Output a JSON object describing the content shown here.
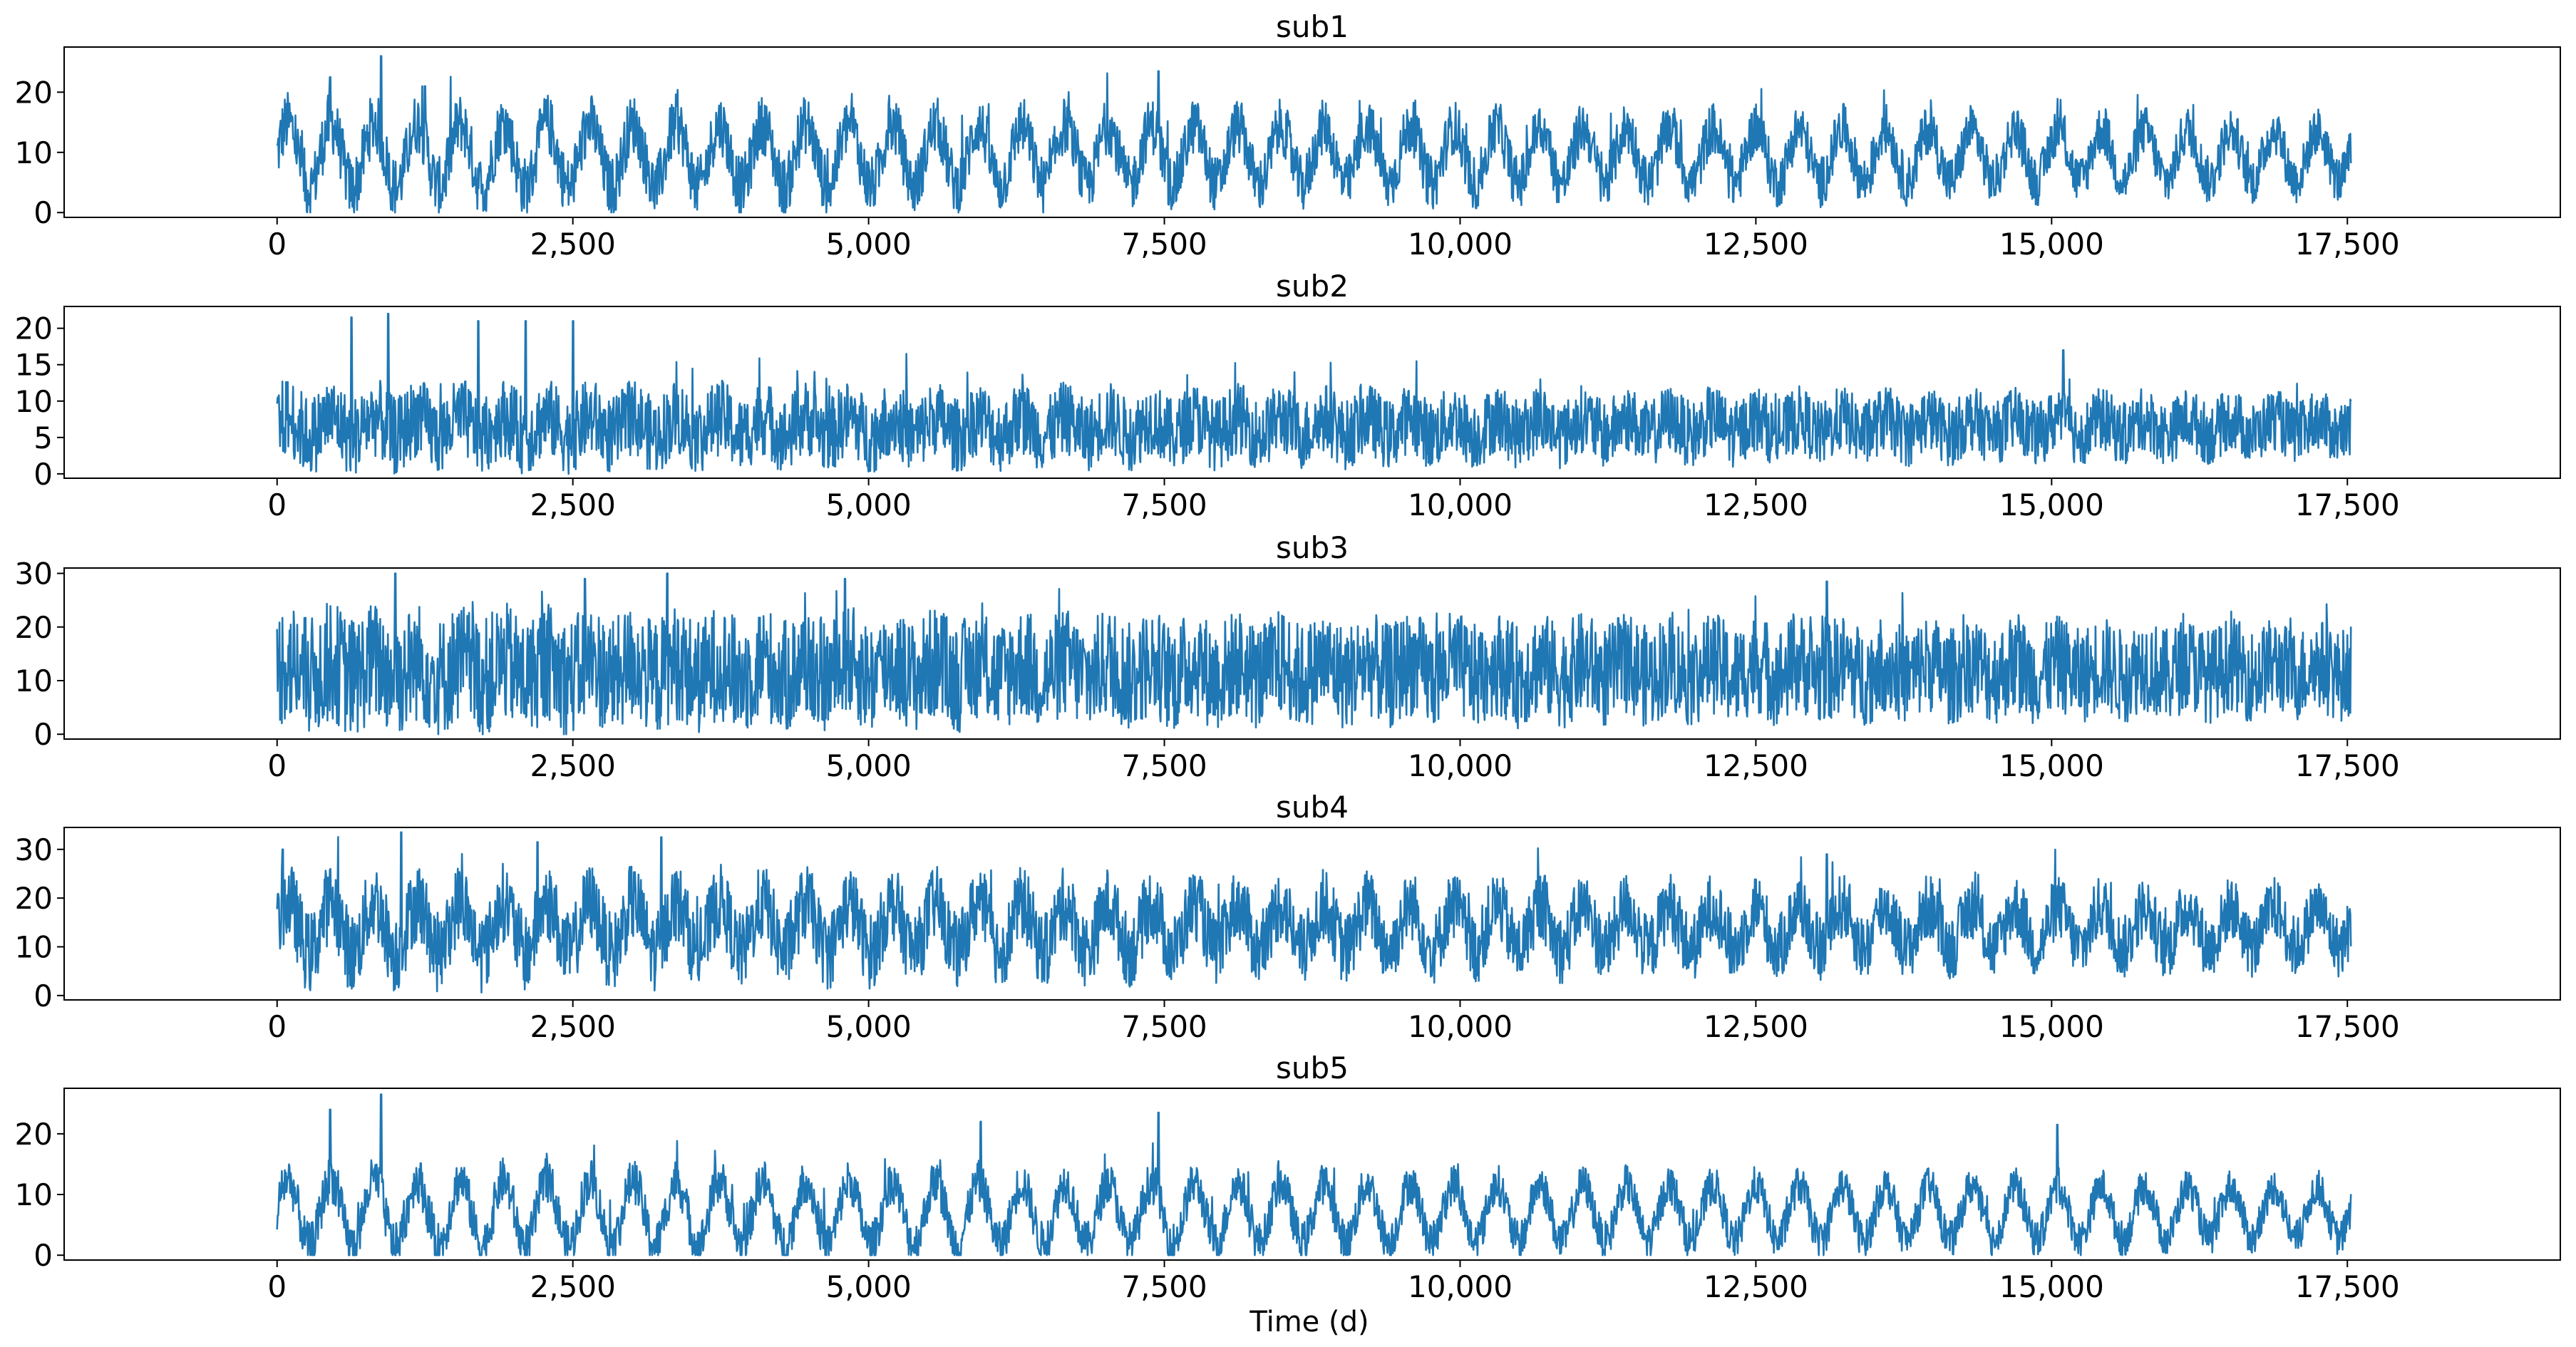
{
  "figure": {
    "xlabel": "Time (d)",
    "line_color": "#1f77b4"
  },
  "chart_data": [
    {
      "type": "line",
      "title": "sub1",
      "xlabel": "",
      "ylabel": "",
      "xlim": [
        -1800,
        19300
      ],
      "ylim": [
        -0.8,
        27.5
      ],
      "xticks": [
        0,
        2500,
        5000,
        7500,
        10000,
        12500,
        15000,
        17500
      ],
      "xtick_labels": [
        "0",
        "2,500",
        "5,000",
        "7,500",
        "10,000",
        "12,500",
        "15,000",
        "17,500"
      ],
      "yticks": [
        0,
        10,
        20
      ],
      "ytick_labels": [
        "0",
        "10",
        "20"
      ],
      "x_range": [
        0,
        17530
      ],
      "approx_mean": 9.5,
      "approx_min": 0,
      "approx_max": 26,
      "peaks": [
        {
          "x": 450,
          "y": 22.5
        },
        {
          "x": 880,
          "y": 26
        },
        {
          "x": 1250,
          "y": 21
        },
        {
          "x": 7450,
          "y": 23.5
        }
      ]
    },
    {
      "type": "line",
      "title": "sub2",
      "xlabel": "",
      "ylabel": "",
      "xlim": [
        -1800,
        19300
      ],
      "ylim": [
        -0.6,
        23
      ],
      "xticks": [
        0,
        2500,
        5000,
        7500,
        10000,
        12500,
        15000,
        17500
      ],
      "xtick_labels": [
        "0",
        "2,500",
        "5,000",
        "7,500",
        "10,000",
        "12,500",
        "15,000",
        "17,500"
      ],
      "yticks": [
        0,
        5,
        10,
        15,
        20
      ],
      "ytick_labels": [
        "0",
        "5",
        "10",
        "15",
        "20"
      ],
      "x_range": [
        0,
        17530
      ],
      "approx_mean": 6.5,
      "approx_min": 0,
      "approx_max": 22,
      "peaks": [
        {
          "x": 630,
          "y": 21.5
        },
        {
          "x": 940,
          "y": 22
        },
        {
          "x": 1700,
          "y": 21
        },
        {
          "x": 2100,
          "y": 21
        },
        {
          "x": 2500,
          "y": 21
        },
        {
          "x": 15100,
          "y": 17
        }
      ]
    },
    {
      "type": "line",
      "title": "sub3",
      "xlabel": "",
      "ylabel": "",
      "xlim": [
        -1800,
        19300
      ],
      "ylim": [
        -0.9,
        31
      ],
      "xticks": [
        0,
        2500,
        5000,
        7500,
        10000,
        12500,
        15000,
        17500
      ],
      "xtick_labels": [
        "0",
        "2,500",
        "5,000",
        "7,500",
        "10,000",
        "12,500",
        "15,000",
        "17,500"
      ],
      "yticks": [
        0,
        10,
        20,
        30
      ],
      "ytick_labels": [
        "0",
        "10",
        "20",
        "30"
      ],
      "x_range": [
        0,
        17530
      ],
      "approx_mean": 12,
      "approx_min": 0,
      "approx_max": 30,
      "peaks": [
        {
          "x": 1000,
          "y": 30
        },
        {
          "x": 2600,
          "y": 29
        },
        {
          "x": 3300,
          "y": 30
        },
        {
          "x": 4800,
          "y": 29
        },
        {
          "x": 13100,
          "y": 28.5
        }
      ]
    },
    {
      "type": "line",
      "title": "sub4",
      "xlabel": "",
      "ylabel": "",
      "xlim": [
        -1800,
        19300
      ],
      "ylim": [
        -0.9,
        34.5
      ],
      "xticks": [
        0,
        2500,
        5000,
        7500,
        10000,
        12500,
        15000,
        17500
      ],
      "xtick_labels": [
        "0",
        "2,500",
        "5,000",
        "7,500",
        "10,000",
        "12,500",
        "15,000",
        "17,500"
      ],
      "yticks": [
        0,
        10,
        20,
        30
      ],
      "ytick_labels": [
        "0",
        "10",
        "20",
        "30"
      ],
      "x_range": [
        0,
        17530
      ],
      "approx_mean": 14,
      "approx_min": 0,
      "approx_max": 33.5,
      "peaks": [
        {
          "x": 50,
          "y": 30
        },
        {
          "x": 1050,
          "y": 33.5
        },
        {
          "x": 2200,
          "y": 31.5
        },
        {
          "x": 3250,
          "y": 32.5
        },
        {
          "x": 13100,
          "y": 29
        }
      ]
    },
    {
      "type": "line",
      "title": "sub5",
      "xlabel": "Time (d)",
      "ylabel": "",
      "xlim": [
        -1800,
        19300
      ],
      "ylim": [
        -0.8,
        27.5
      ],
      "xticks": [
        0,
        2500,
        5000,
        7500,
        10000,
        12500,
        15000,
        17500
      ],
      "xtick_labels": [
        "0",
        "2,500",
        "5,000",
        "7,500",
        "10,000",
        "12,500",
        "15,000",
        "17,500"
      ],
      "yticks": [
        0,
        10,
        20
      ],
      "ytick_labels": [
        "0",
        "10",
        "20"
      ],
      "x_range": [
        0,
        17530
      ],
      "approx_mean": 7,
      "approx_min": 0,
      "approx_max": 26.5,
      "peaks": [
        {
          "x": 450,
          "y": 24
        },
        {
          "x": 880,
          "y": 26.5
        },
        {
          "x": 5950,
          "y": 22
        },
        {
          "x": 7450,
          "y": 23.5
        },
        {
          "x": 15050,
          "y": 21.5
        }
      ]
    }
  ]
}
